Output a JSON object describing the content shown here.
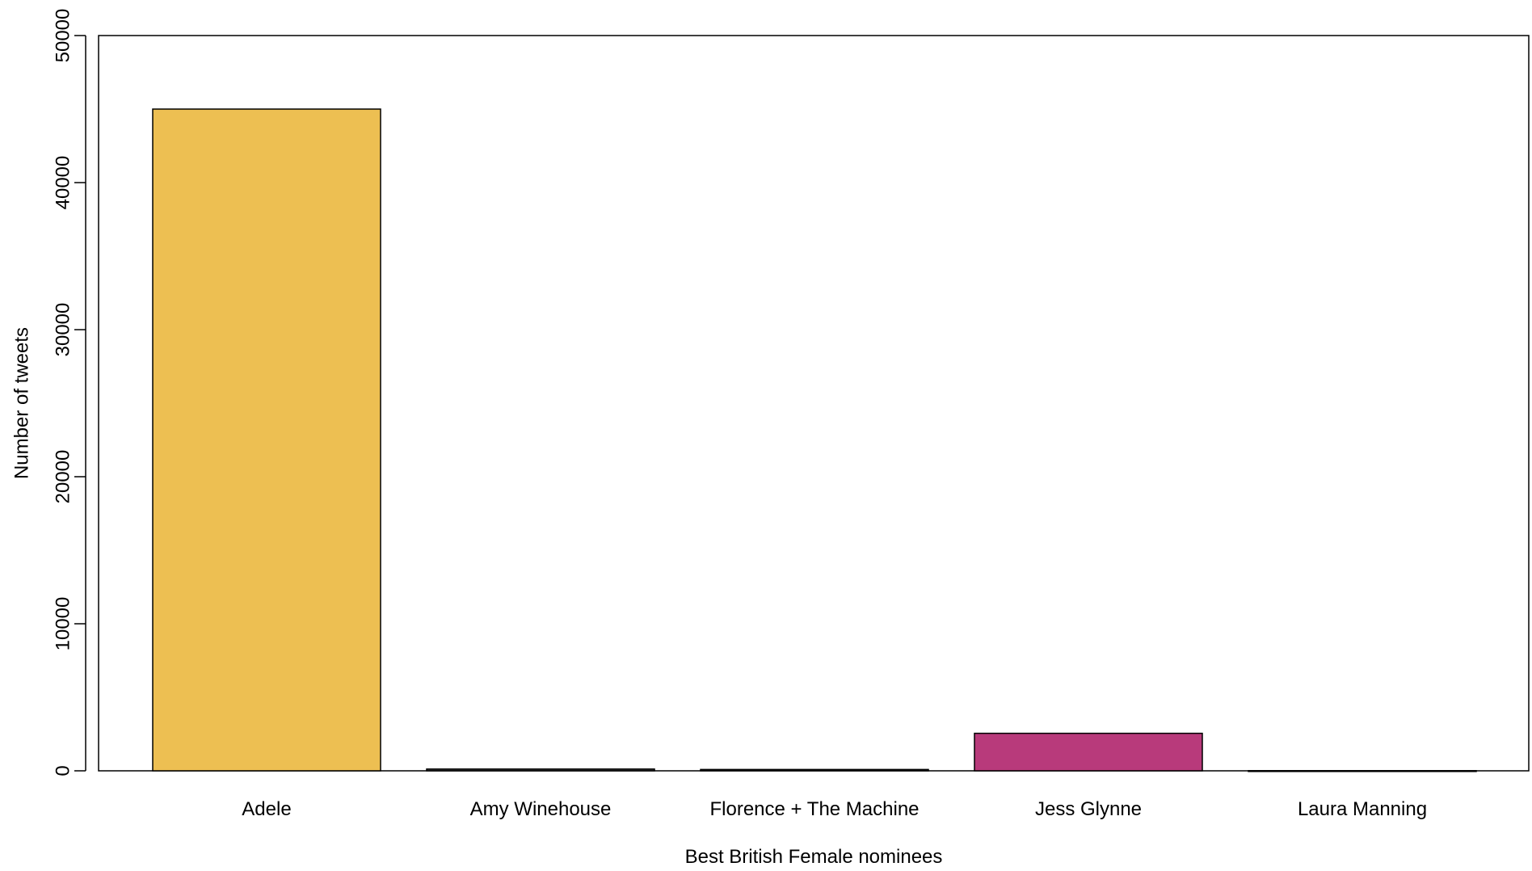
{
  "chart_data": {
    "type": "bar",
    "title": "",
    "xlabel": "Best British Female nominees",
    "ylabel": "Number of tweets",
    "categories": [
      "Adele",
      "Amy Winehouse",
      "Florence + The Machine",
      "Jess Glynne",
      "Laura Manning"
    ],
    "values": [
      45000,
      120,
      90,
      2550,
      10
    ],
    "colors": [
      "#EDBF52",
      "#4A4A4A",
      "#4A4A4A",
      "#B83A7B",
      "#4A4A4A"
    ],
    "ylim": [
      0,
      50000
    ],
    "yticks": [
      "0",
      "10000",
      "20000",
      "30000",
      "40000",
      "50000"
    ],
    "grid": false,
    "legend": "none"
  }
}
